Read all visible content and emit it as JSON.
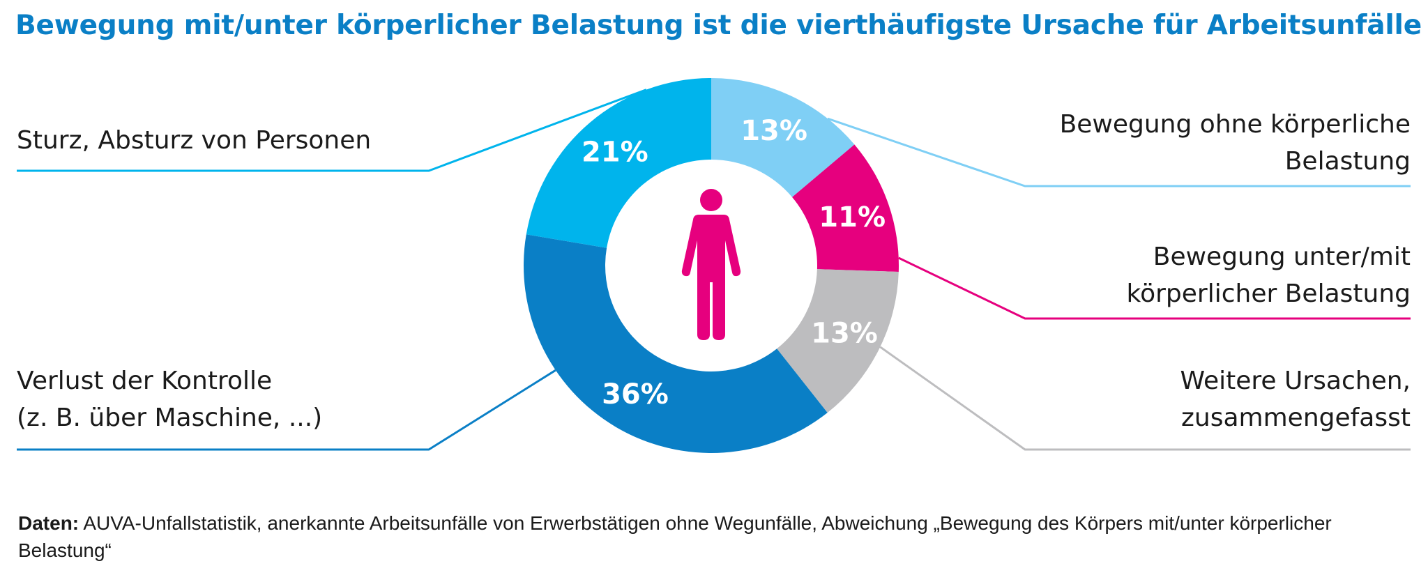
{
  "title": "Bewegung mit/unter körperlicher Belastung ist die vierthäufigste Ursache für Arbeitsunfälle",
  "chart_data": {
    "type": "pie",
    "variant": "donut",
    "title": "Bewegung mit/unter körperlicher Belastung ist die vierthäufigste Ursache für Arbeitsunfälle",
    "unit": "%",
    "slices": [
      {
        "key": "ohne",
        "label_lines": [
          "Bewegung ohne körperliche",
          "Belastung"
        ],
        "value": 13,
        "display": "13%",
        "color": "#7fcff5",
        "side": "right"
      },
      {
        "key": "mit",
        "label_lines": [
          "Bewegung unter/mit",
          "körperlicher Belastung"
        ],
        "value": 11,
        "display": "11%",
        "color": "#e6007e",
        "side": "right"
      },
      {
        "key": "weitere",
        "label_lines": [
          "Weitere Ursachen,",
          "zusammengefasst"
        ],
        "value": 13,
        "display": "13%",
        "color": "#bdbdbf",
        "side": "right"
      },
      {
        "key": "verlust",
        "label_lines": [
          "Verlust der Kontrolle",
          "(z. B. über Maschine, ...)"
        ],
        "value": 36,
        "display": "36%",
        "color": "#0a7fc6",
        "side": "left"
      },
      {
        "key": "sturz",
        "label_lines": [
          "Sturz, Absturz von Personen"
        ],
        "value": 21,
        "display": "21%",
        "color": "#00b4ec",
        "side": "left"
      }
    ],
    "center_icon": "person-icon",
    "center_icon_color": "#e6007e"
  },
  "source": {
    "label": "Daten:",
    "text": " AUVA-Unfallstatistik, anerkannte Arbeitsunfälle von Erwerbstätigen ohne Wegunfälle, Abweichung „Bewegung des Körpers mit/unter körperlicher Belastung“"
  }
}
